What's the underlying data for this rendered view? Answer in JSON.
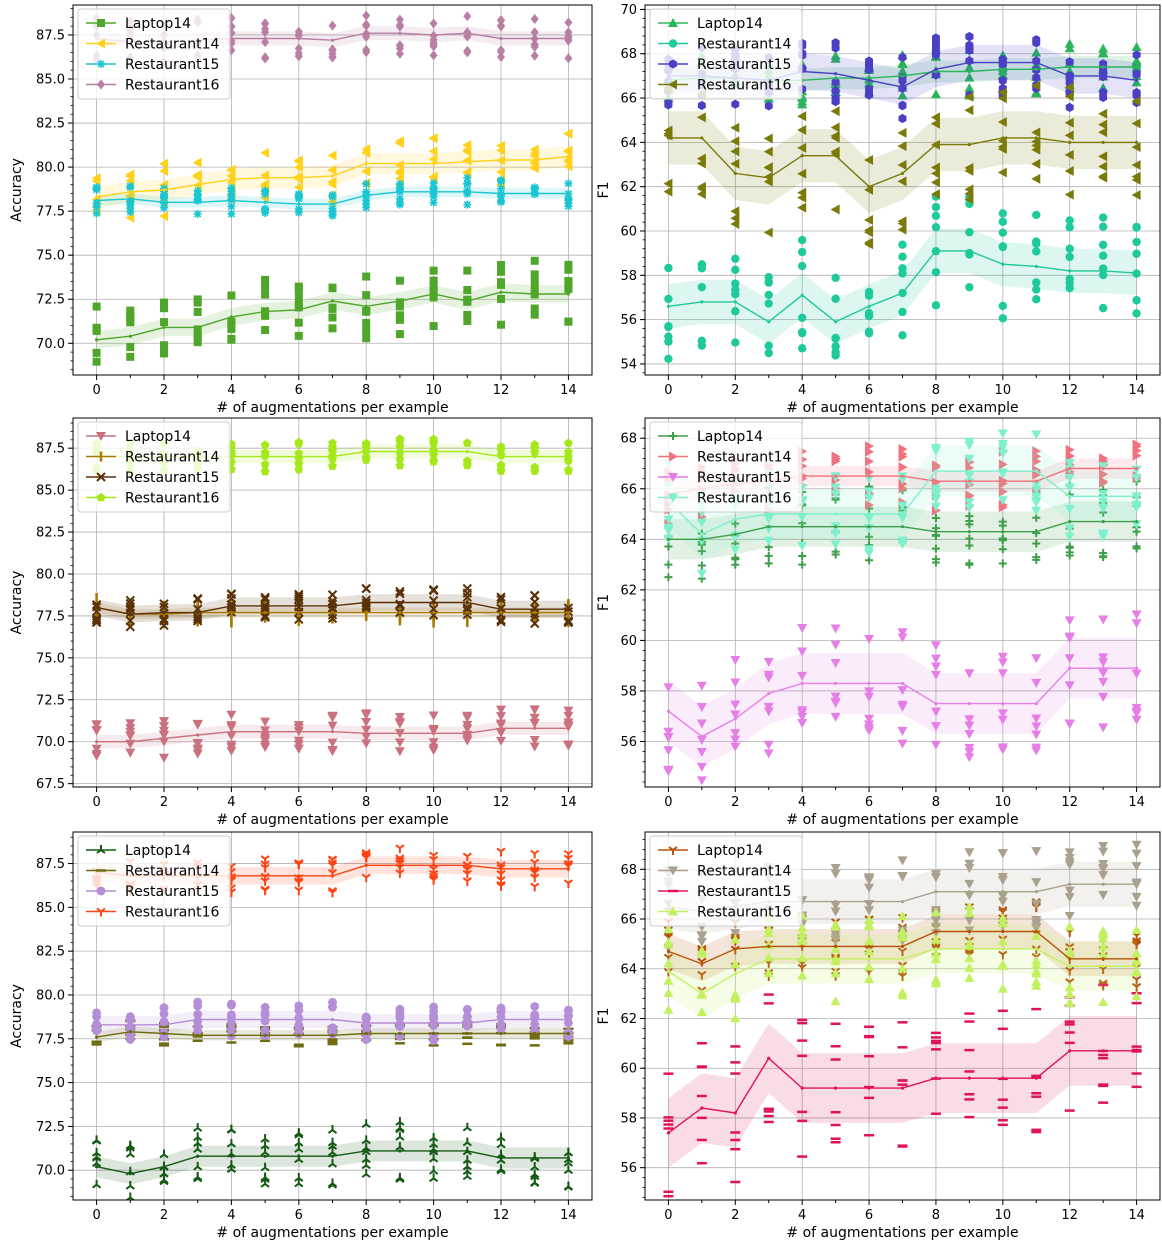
{
  "chart_data": [
    {
      "type": "line",
      "xlabel": "# of augmentations per example",
      "ylabel": "Accuracy",
      "xlim": [
        -0.7,
        14.7
      ],
      "ylim": [
        68.2,
        89.2
      ],
      "xticks": [
        "0",
        "2",
        "4",
        "6",
        "8",
        "10",
        "12",
        "14"
      ],
      "yticks": [
        "70.0",
        "72.5",
        "75.0",
        "77.5",
        "80.0",
        "82.5",
        "85.0",
        "87.5"
      ],
      "grid": true,
      "legend_position": "top-left",
      "x": [
        0,
        1,
        2,
        3,
        4,
        5,
        6,
        7,
        8,
        9,
        10,
        11,
        12,
        13,
        14
      ],
      "series": [
        {
          "name": "Laptop14",
          "color": "#4fa62a",
          "marker": "square",
          "values": [
            70.2,
            70.4,
            70.9,
            70.9,
            71.5,
            71.8,
            71.9,
            72.4,
            72.1,
            72.4,
            72.8,
            72.4,
            72.9,
            72.8,
            72.8
          ],
          "band": 0.5,
          "spread": 1.9
        },
        {
          "name": "Restaurant14",
          "color": "#ffd11a",
          "marker": "tri-left",
          "values": [
            78.3,
            78.6,
            78.7,
            79.0,
            79.3,
            79.4,
            79.4,
            79.5,
            80.2,
            80.2,
            80.2,
            80.3,
            80.4,
            80.4,
            80.6
          ],
          "band": 0.6,
          "spread": 1.5
        },
        {
          "name": "Restaurant15",
          "color": "#1ac6d1",
          "marker": "star",
          "values": [
            78.1,
            78.2,
            78.0,
            78.0,
            78.1,
            78.0,
            77.9,
            77.9,
            78.4,
            78.6,
            78.6,
            78.6,
            78.5,
            78.5,
            78.5
          ],
          "band": 0.3,
          "spread": 0.8
        },
        {
          "name": "Restaurant16",
          "color": "#b77fa3",
          "marker": "diamond",
          "values": [
            87.3,
            87.1,
            87.1,
            87.2,
            87.3,
            87.3,
            87.3,
            87.2,
            87.6,
            87.6,
            87.5,
            87.6,
            87.3,
            87.3,
            87.3
          ],
          "band": 0.4,
          "spread": 1.2
        }
      ]
    },
    {
      "type": "line",
      "xlabel": "# of augmentations per example",
      "ylabel": "F1",
      "xlim": [
        -0.7,
        14.7
      ],
      "ylim": [
        53.5,
        70.2
      ],
      "xticks": [
        "0",
        "2",
        "4",
        "6",
        "8",
        "10",
        "12",
        "14"
      ],
      "yticks": [
        "54",
        "56",
        "58",
        "60",
        "62",
        "64",
        "66",
        "68",
        "70"
      ],
      "grid": true,
      "legend_position": "top-left",
      "x": [
        0,
        1,
        2,
        3,
        4,
        5,
        6,
        7,
        8,
        9,
        10,
        11,
        12,
        13,
        14
      ],
      "series": [
        {
          "name": "Laptop14",
          "color": "#2ab55c",
          "marker": "triangle-up",
          "values": [
            66.8,
            66.9,
            66.9,
            66.8,
            66.8,
            66.9,
            66.9,
            67.0,
            67.2,
            67.2,
            67.3,
            67.3,
            67.4,
            67.4,
            67.4
          ],
          "band": 0.5,
          "spread": 1.1
        },
        {
          "name": "Restaurant14",
          "color": "#1ec99a",
          "marker": "circle",
          "values": [
            56.6,
            56.8,
            56.8,
            55.9,
            57.1,
            55.9,
            56.6,
            57.2,
            59.1,
            59.1,
            58.5,
            58.4,
            58.2,
            58.2,
            58.1
          ],
          "band": 1.0,
          "spread": 2.5
        },
        {
          "name": "Restaurant15",
          "color": "#4b3fc6",
          "marker": "hexagon",
          "values": [
            67.0,
            67.0,
            66.9,
            66.8,
            67.2,
            67.1,
            66.8,
            66.5,
            67.3,
            67.6,
            67.6,
            67.6,
            67.0,
            67.0,
            66.8
          ],
          "band": 0.8,
          "spread": 1.5
        },
        {
          "name": "Restaurant16",
          "color": "#7a7a0a",
          "marker": "tri-left",
          "values": [
            64.2,
            64.2,
            62.6,
            62.4,
            63.4,
            63.4,
            62.0,
            62.6,
            63.9,
            63.9,
            64.2,
            64.2,
            64.0,
            64.0,
            64.0
          ],
          "band": 1.2,
          "spread": 2.6
        }
      ]
    },
    {
      "type": "line",
      "xlabel": "# of augmentations per example",
      "ylabel": "Accuracy",
      "xlim": [
        -0.7,
        14.7
      ],
      "ylim": [
        67.3,
        89.3
      ],
      "xticks": [
        "0",
        "2",
        "4",
        "6",
        "8",
        "10",
        "12",
        "14"
      ],
      "yticks": [
        "67.5",
        "70.0",
        "72.5",
        "75.0",
        "77.5",
        "80.0",
        "82.5",
        "85.0",
        "87.5"
      ],
      "grid": true,
      "legend_position": "top-left",
      "x": [
        0,
        1,
        2,
        3,
        4,
        5,
        6,
        7,
        8,
        9,
        10,
        11,
        12,
        13,
        14
      ],
      "series": [
        {
          "name": "Laptop14",
          "color": "#c9717e",
          "marker": "triangle-down",
          "values": [
            70.0,
            70.0,
            70.2,
            70.4,
            70.6,
            70.6,
            70.6,
            70.6,
            70.5,
            70.5,
            70.5,
            70.5,
            70.8,
            70.8,
            70.8
          ],
          "band": 0.4,
          "spread": 1.2
        },
        {
          "name": "Restaurant14",
          "color": "#a87a00",
          "marker": "vline",
          "values": [
            78.0,
            77.6,
            77.6,
            77.7,
            77.7,
            77.7,
            77.7,
            77.7,
            77.7,
            77.7,
            77.7,
            77.7,
            77.7,
            77.7,
            77.7
          ],
          "band": 0.3,
          "spread": 0.6
        },
        {
          "name": "Restaurant15",
          "color": "#5a3208",
          "marker": "x",
          "values": [
            78.0,
            77.6,
            77.7,
            77.7,
            78.1,
            78.1,
            78.1,
            78.1,
            78.3,
            78.3,
            78.3,
            78.3,
            77.9,
            77.9,
            77.9
          ],
          "band": 0.5,
          "spread": 0.9
        },
        {
          "name": "Restaurant16",
          "color": "#a4e81a",
          "marker": "pentagon",
          "values": [
            87.0,
            87.0,
            87.0,
            87.0,
            87.0,
            87.0,
            87.0,
            87.0,
            87.3,
            87.3,
            87.3,
            87.3,
            87.0,
            87.0,
            87.0
          ],
          "band": 0.4,
          "spread": 0.9
        }
      ]
    },
    {
      "type": "line",
      "xlabel": "# of augmentations per example",
      "ylabel": "F1",
      "xlim": [
        -0.7,
        14.7
      ],
      "ylim": [
        54.2,
        68.8
      ],
      "xticks": [
        "0",
        "2",
        "4",
        "6",
        "8",
        "10",
        "12",
        "14"
      ],
      "yticks": [
        "56",
        "58",
        "60",
        "62",
        "64",
        "66",
        "68"
      ],
      "grid": true,
      "legend_position": "top-left",
      "x": [
        0,
        1,
        2,
        3,
        4,
        5,
        6,
        7,
        8,
        9,
        10,
        11,
        12,
        13,
        14
      ],
      "series": [
        {
          "name": "Laptop14",
          "color": "#3f9e4a",
          "marker": "plus",
          "values": [
            64.0,
            64.0,
            64.2,
            64.5,
            64.5,
            64.5,
            64.5,
            64.5,
            64.3,
            64.3,
            64.3,
            64.3,
            64.7,
            64.7,
            64.7
          ],
          "band": 0.8,
          "spread": 1.6
        },
        {
          "name": "Restaurant14",
          "color": "#f0727f",
          "marker": "tri-right",
          "values": [
            65.8,
            66.0,
            66.2,
            66.3,
            66.5,
            66.5,
            66.5,
            66.5,
            66.3,
            66.3,
            66.3,
            66.3,
            66.8,
            66.8,
            66.8
          ],
          "band": 0.4,
          "spread": 1.2
        },
        {
          "name": "Restaurant15",
          "color": "#e57fe5",
          "marker": "triangle-down",
          "values": [
            57.2,
            56.2,
            56.9,
            57.9,
            58.3,
            58.3,
            58.3,
            58.3,
            57.5,
            57.5,
            57.5,
            57.5,
            58.9,
            58.9,
            58.9
          ],
          "band": 1.2,
          "spread": 2.4
        },
        {
          "name": "Restaurant16",
          "color": "#7ff0cc",
          "marker": "triangle-down",
          "values": [
            65.5,
            64.2,
            64.8,
            65.0,
            65.0,
            65.0,
            65.0,
            65.0,
            66.7,
            66.7,
            66.7,
            66.7,
            65.7,
            65.7,
            65.7
          ],
          "band": 1.0,
          "spread": 1.6
        }
      ]
    },
    {
      "type": "line",
      "xlabel": "# of augmentations per example",
      "ylabel": "Accuracy",
      "xlim": [
        -0.7,
        14.7
      ],
      "ylim": [
        68.3,
        89.3
      ],
      "xticks": [
        "0",
        "2",
        "4",
        "6",
        "8",
        "10",
        "12",
        "14"
      ],
      "yticks": [
        "70.0",
        "72.5",
        "75.0",
        "77.5",
        "80.0",
        "82.5",
        "85.0",
        "87.5"
      ],
      "grid": true,
      "legend_position": "top-left",
      "x": [
        0,
        1,
        2,
        3,
        4,
        5,
        6,
        7,
        8,
        9,
        10,
        11,
        12,
        13,
        14
      ],
      "series": [
        {
          "name": "Laptop14",
          "color": "#145a14",
          "marker": "tri-up",
          "values": [
            70.2,
            69.8,
            70.2,
            70.8,
            70.8,
            70.8,
            70.8,
            70.8,
            71.1,
            71.1,
            71.1,
            71.1,
            70.7,
            70.7,
            70.7
          ],
          "band": 0.6,
          "spread": 1.7
        },
        {
          "name": "Restaurant14",
          "color": "#6e6b10",
          "marker": "hline",
          "values": [
            77.6,
            77.9,
            77.8,
            77.7,
            77.7,
            77.7,
            77.7,
            77.7,
            77.8,
            77.8,
            77.8,
            77.8,
            77.8,
            77.8,
            77.8
          ],
          "band": 0.3,
          "spread": 0.7
        },
        {
          "name": "Restaurant15",
          "color": "#b48fd7",
          "marker": "octagon",
          "values": [
            78.3,
            78.3,
            78.3,
            78.6,
            78.6,
            78.6,
            78.6,
            78.6,
            78.4,
            78.4,
            78.4,
            78.4,
            78.6,
            78.6,
            78.6
          ],
          "band": 0.5,
          "spread": 1.0
        },
        {
          "name": "Restaurant16",
          "color": "#ff4414",
          "marker": "tri-down",
          "values": [
            87.0,
            86.8,
            86.8,
            86.8,
            86.8,
            86.8,
            86.8,
            86.8,
            87.4,
            87.4,
            87.4,
            87.4,
            87.2,
            87.2,
            87.2
          ],
          "band": 0.5,
          "spread": 1.0
        }
      ]
    },
    {
      "type": "line",
      "xlabel": "# of augmentations per example",
      "ylabel": "F1",
      "xlim": [
        -0.7,
        14.7
      ],
      "ylim": [
        54.7,
        69.5
      ],
      "xticks": [
        "0",
        "2",
        "4",
        "6",
        "8",
        "10",
        "12",
        "14"
      ],
      "yticks": [
        "56",
        "58",
        "60",
        "62",
        "64",
        "66",
        "68"
      ],
      "grid": true,
      "legend_position": "top-left",
      "x": [
        0,
        1,
        2,
        3,
        4,
        5,
        6,
        7,
        8,
        9,
        10,
        11,
        12,
        13,
        14
      ],
      "series": [
        {
          "name": "Laptop14",
          "color": "#b8520a",
          "marker": "tri-down",
          "values": [
            64.7,
            64.2,
            64.8,
            64.9,
            64.9,
            64.9,
            64.9,
            64.9,
            65.5,
            65.5,
            65.5,
            65.5,
            64.4,
            64.4,
            64.4
          ],
          "band": 0.7,
          "spread": 1.2
        },
        {
          "name": "Restaurant14",
          "color": "#aaa08e",
          "marker": "triangle-down",
          "values": [
            66.5,
            66.3,
            66.5,
            66.7,
            66.7,
            66.7,
            66.7,
            66.7,
            67.1,
            67.1,
            67.1,
            67.1,
            67.4,
            67.4,
            67.4
          ],
          "band": 0.9,
          "spread": 1.7
        },
        {
          "name": "Restaurant15",
          "color": "#e0125a",
          "marker": "hline",
          "values": [
            57.4,
            58.4,
            58.2,
            60.4,
            59.2,
            59.2,
            59.2,
            59.2,
            59.6,
            59.6,
            59.6,
            59.6,
            60.7,
            60.7,
            60.7
          ],
          "band": 1.4,
          "spread": 2.8
        },
        {
          "name": "Restaurant16",
          "color": "#c2f060",
          "marker": "triangle-up",
          "values": [
            63.9,
            63.0,
            63.8,
            64.4,
            64.4,
            64.4,
            64.4,
            64.4,
            64.8,
            64.8,
            64.8,
            64.8,
            64.1,
            64.1,
            64.1
          ],
          "band": 1.0,
          "spread": 1.8
        }
      ]
    }
  ]
}
